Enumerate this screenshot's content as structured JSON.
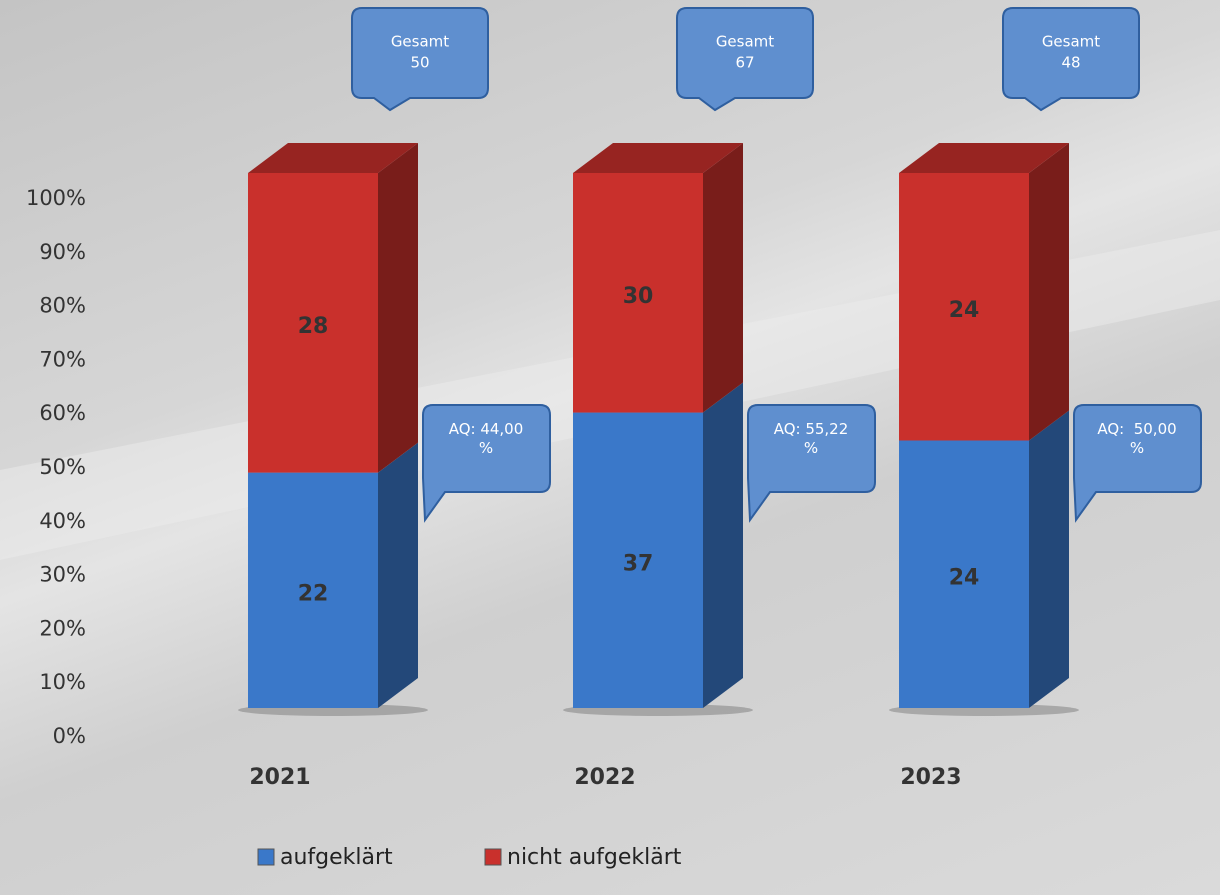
{
  "chart_data": {
    "type": "bar",
    "stacking": "percent",
    "categories": [
      "2021",
      "2022",
      "2023"
    ],
    "series": [
      {
        "name": "aufgeklärt",
        "color": "#3a78c9",
        "values": [
          22,
          37,
          24
        ]
      },
      {
        "name": "nicht aufgeklärt",
        "color": "#c9302c",
        "values": [
          28,
          30,
          24
        ]
      }
    ],
    "ylim": [
      0,
      100
    ],
    "yticks": [
      {
        "value": 0,
        "label": "0%"
      },
      {
        "value": 10,
        "label": "10%"
      },
      {
        "value": 20,
        "label": "20%"
      },
      {
        "value": 30,
        "label": "30%"
      },
      {
        "value": 40,
        "label": "40%"
      },
      {
        "value": 50,
        "label": "50%"
      },
      {
        "value": 60,
        "label": "60%"
      },
      {
        "value": 70,
        "label": "70%"
      },
      {
        "value": 80,
        "label": "80%"
      },
      {
        "value": 90,
        "label": "90%"
      },
      {
        "value": 100,
        "label": "100%"
      }
    ],
    "grid": false,
    "legend": "bottom",
    "total_callouts": [
      {
        "label": "Gesamt",
        "value": 50
      },
      {
        "label": "Gesamt",
        "value": 67
      },
      {
        "label": "Gesamt",
        "value": 48
      }
    ],
    "rate_callouts": [
      "AQ: 44,00 %",
      "AQ: 55,22 %",
      "AQ:  50,00 %"
    ]
  }
}
